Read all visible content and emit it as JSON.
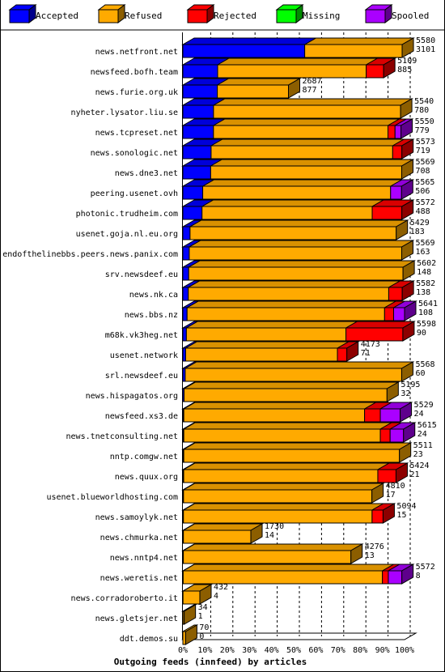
{
  "chart_data": {
    "type": "bar",
    "stacked": true,
    "orientation": "horizontal",
    "title": "Outgoing feeds (innfeed) by articles",
    "xlabel": "",
    "ylabel": "",
    "x_ticks": [
      "0%",
      "10%",
      "20%",
      "30%",
      "40%",
      "50%",
      "60%",
      "70%",
      "80%",
      "90%",
      "100%"
    ],
    "legend": [
      {
        "name": "Accepted",
        "color": "#0000ff"
      },
      {
        "name": "Refused",
        "color": "#ffaa00"
      },
      {
        "name": "Rejected",
        "color": "#ff0000"
      },
      {
        "name": "Missing",
        "color": "#00ff00"
      },
      {
        "name": "Spooled",
        "color": "#aa00ff"
      }
    ],
    "legend_placement": "top",
    "scale_max": 5641,
    "rows": [
      {
        "name": "news.netfront.net",
        "offered": 5580,
        "accepted": 3101,
        "refused": 2479,
        "rejected": 0,
        "missing": 0,
        "spooled": 0
      },
      {
        "name": "newsfeed.bofh.team",
        "offered": 5109,
        "accepted": 885,
        "refused": 3780,
        "rejected": 444,
        "missing": 0,
        "spooled": 0
      },
      {
        "name": "news.furie.org.uk",
        "offered": 2687,
        "accepted": 877,
        "refused": 1810,
        "rejected": 0,
        "missing": 0,
        "spooled": 0
      },
      {
        "name": "nyheter.lysator.liu.se",
        "offered": 5540,
        "accepted": 780,
        "refused": 4760,
        "rejected": 0,
        "missing": 0,
        "spooled": 0
      },
      {
        "name": "news.tcpreset.net",
        "offered": 5550,
        "accepted": 779,
        "refused": 4440,
        "rejected": 180,
        "missing": 0,
        "spooled": 151
      },
      {
        "name": "news.sonologic.net",
        "offered": 5573,
        "accepted": 719,
        "refused": 4620,
        "rejected": 234,
        "missing": 0,
        "spooled": 0
      },
      {
        "name": "news.dne3.net",
        "offered": 5569,
        "accepted": 708,
        "refused": 4861,
        "rejected": 0,
        "missing": 0,
        "spooled": 0
      },
      {
        "name": "peering.usenet.ovh",
        "offered": 5565,
        "accepted": 506,
        "refused": 4780,
        "rejected": 0,
        "missing": 0,
        "spooled": 279
      },
      {
        "name": "photonic.trudheim.com",
        "offered": 5572,
        "accepted": 488,
        "refused": 4330,
        "rejected": 754,
        "missing": 0,
        "spooled": 0
      },
      {
        "name": "usenet.goja.nl.eu.org",
        "offered": 5429,
        "accepted": 183,
        "refused": 5246,
        "rejected": 0,
        "missing": 0,
        "spooled": 0
      },
      {
        "name": "endofthelinebbs.peers.news.panix.com",
        "offered": 5569,
        "accepted": 163,
        "refused": 5406,
        "rejected": 0,
        "missing": 0,
        "spooled": 0
      },
      {
        "name": "srv.newsdeef.eu",
        "offered": 5602,
        "accepted": 148,
        "refused": 5454,
        "rejected": 0,
        "missing": 0,
        "spooled": 0
      },
      {
        "name": "news.nk.ca",
        "offered": 5582,
        "accepted": 138,
        "refused": 5100,
        "rejected": 344,
        "missing": 0,
        "spooled": 0
      },
      {
        "name": "news.bbs.nz",
        "offered": 5641,
        "accepted": 108,
        "refused": 5025,
        "rejected": 230,
        "missing": 0,
        "spooled": 278
      },
      {
        "name": "m68k.vk3heg.net",
        "offered": 5598,
        "accepted": 90,
        "refused": 4060,
        "rejected": 1448,
        "missing": 0,
        "spooled": 0
      },
      {
        "name": "usenet.network",
        "offered": 4173,
        "accepted": 71,
        "refused": 3862,
        "rejected": 240,
        "missing": 0,
        "spooled": 0
      },
      {
        "name": "srl.newsdeef.eu",
        "offered": 5568,
        "accepted": 60,
        "refused": 5508,
        "rejected": 0,
        "missing": 0,
        "spooled": 0
      },
      {
        "name": "news.hispagatos.org",
        "offered": 5195,
        "accepted": 32,
        "refused": 5163,
        "rejected": 0,
        "missing": 0,
        "spooled": 0
      },
      {
        "name": "newsfeed.xs3.de",
        "offered": 5529,
        "accepted": 24,
        "refused": 4600,
        "rejected": 400,
        "missing": 0,
        "spooled": 505
      },
      {
        "name": "news.tnetconsulting.net",
        "offered": 5615,
        "accepted": 24,
        "refused": 5000,
        "rejected": 250,
        "missing": 0,
        "spooled": 341
      },
      {
        "name": "nntp.comgw.net",
        "offered": 5511,
        "accepted": 23,
        "refused": 5488,
        "rejected": 0,
        "missing": 0,
        "spooled": 0
      },
      {
        "name": "news.quux.org",
        "offered": 5424,
        "accepted": 21,
        "refused": 4940,
        "rejected": 463,
        "missing": 0,
        "spooled": 0
      },
      {
        "name": "usenet.blueworldhosting.com",
        "offered": 4810,
        "accepted": 17,
        "refused": 4793,
        "rejected": 0,
        "missing": 0,
        "spooled": 0
      },
      {
        "name": "news.samoylyk.net",
        "offered": 5094,
        "accepted": 15,
        "refused": 4800,
        "rejected": 279,
        "missing": 0,
        "spooled": 0
      },
      {
        "name": "news.chmurka.net",
        "offered": 1730,
        "accepted": 14,
        "refused": 1716,
        "rejected": 0,
        "missing": 0,
        "spooled": 0
      },
      {
        "name": "news.nntp4.net",
        "offered": 4276,
        "accepted": 13,
        "refused": 4263,
        "rejected": 0,
        "missing": 0,
        "spooled": 0
      },
      {
        "name": "news.weretis.net",
        "offered": 5572,
        "accepted": 8,
        "refused": 5070,
        "rejected": 150,
        "missing": 0,
        "spooled": 344
      },
      {
        "name": "news.corradoroberto.it",
        "offered": 432,
        "accepted": 4,
        "refused": 428,
        "rejected": 0,
        "missing": 0,
        "spooled": 0
      },
      {
        "name": "news.gletsjer.net",
        "offered": 34,
        "accepted": 1,
        "refused": 33,
        "rejected": 0,
        "missing": 0,
        "spooled": 0
      },
      {
        "name": "ddt.demos.su",
        "offered": 70,
        "accepted": 0,
        "refused": 70,
        "rejected": 0,
        "missing": 0,
        "spooled": 0
      }
    ]
  }
}
